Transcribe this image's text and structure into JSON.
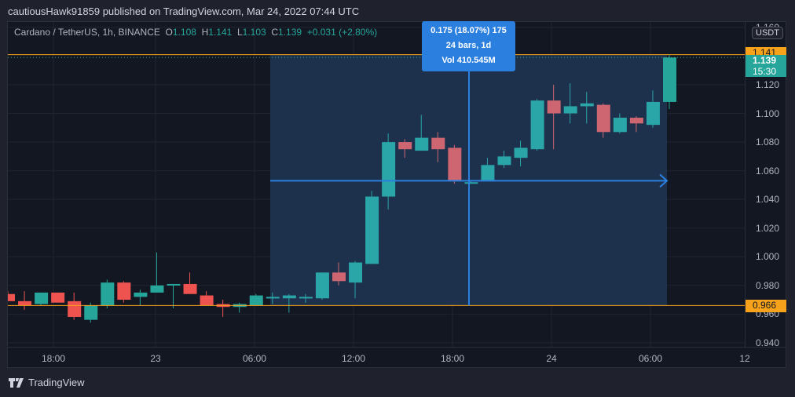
{
  "header": {
    "publish_text": "cautiousHawk91859 published on TradingView.com, Mar 24, 2022 07:44 UTC"
  },
  "legend": {
    "symbol": "Cardano / TetherUS, 1h, BINANCE",
    "o_label": "O",
    "o_value": "1.108",
    "h_label": "H",
    "h_value": "1.141",
    "l_label": "L",
    "l_value": "1.103",
    "c_label": "C",
    "c_value": "1.139",
    "change": "+0.031 (+2.80%)"
  },
  "measure_tooltip": {
    "line1": "0.175 (18.07%) 175",
    "line2": "24 bars, 1d",
    "line3": "Vol 410.545M"
  },
  "price_axis": {
    "unit": "USDT",
    "ticks": [
      "1.160",
      "1.120",
      "1.100",
      "1.080",
      "1.060",
      "1.040",
      "1.020",
      "1.000",
      "0.980",
      "0.960",
      "0.940"
    ],
    "high_badge": "1.141",
    "last_price_badge": "1.139",
    "countdown": "15:30",
    "low_badge": "0.966"
  },
  "time_axis": {
    "labels": [
      "18:00",
      "23",
      "06:00",
      "12:00",
      "18:00",
      "24",
      "06:00",
      "12"
    ]
  },
  "footer": {
    "brand": "TradingView"
  },
  "colors": {
    "up": "#26a69a",
    "down": "#ef5350",
    "up_in_range": "#2aa5a8",
    "down_in_range": "#cd6670",
    "horizontal_line": "#f7a21b",
    "measure": "#2a7fdf",
    "measure_fill": "#1e3350",
    "background": "#131722"
  },
  "chart_data": {
    "type": "candlestick",
    "title": "Cardano / TetherUS, 1h, BINANCE",
    "xlabel": "",
    "ylabel": "USDT",
    "ylim": [
      0.935,
      1.162
    ],
    "grid": true,
    "x_tick_labels": [
      "18:00",
      "23",
      "06:00",
      "12:00",
      "18:00",
      "24",
      "06:00",
      "12"
    ],
    "horizontal_lines": [
      1.141,
      0.966
    ],
    "measure_range": {
      "from_bar": 16,
      "to_bar": 40,
      "price_from": 0.966,
      "price_to": 1.141,
      "change": 0.175,
      "change_pct": 18.07,
      "bars": 24,
      "duration": "1d",
      "volume": "410.545M"
    },
    "candles": [
      {
        "o": 0.974,
        "h": 0.976,
        "l": 0.969,
        "c": 0.969
      },
      {
        "o": 0.969,
        "h": 0.976,
        "l": 0.963,
        "c": 0.966
      },
      {
        "o": 0.967,
        "h": 0.975,
        "l": 0.966,
        "c": 0.975
      },
      {
        "o": 0.975,
        "h": 0.975,
        "l": 0.968,
        "c": 0.968
      },
      {
        "o": 0.969,
        "h": 0.975,
        "l": 0.956,
        "c": 0.958
      },
      {
        "o": 0.956,
        "h": 0.968,
        "l": 0.954,
        "c": 0.966
      },
      {
        "o": 0.966,
        "h": 0.984,
        "l": 0.964,
        "c": 0.982
      },
      {
        "o": 0.982,
        "h": 0.983,
        "l": 0.968,
        "c": 0.97
      },
      {
        "o": 0.972,
        "h": 0.977,
        "l": 0.966,
        "c": 0.975
      },
      {
        "o": 0.975,
        "h": 1.003,
        "l": 0.975,
        "c": 0.98
      },
      {
        "o": 0.98,
        "h": 0.981,
        "l": 0.964,
        "c": 0.981
      },
      {
        "o": 0.981,
        "h": 0.989,
        "l": 0.976,
        "c": 0.974
      },
      {
        "o": 0.973,
        "h": 0.976,
        "l": 0.966,
        "c": 0.966
      },
      {
        "o": 0.967,
        "h": 0.97,
        "l": 0.958,
        "c": 0.965
      },
      {
        "o": 0.965,
        "h": 0.968,
        "l": 0.961,
        "c": 0.967
      },
      {
        "o": 0.966,
        "h": 0.974,
        "l": 0.966,
        "c": 0.973
      },
      {
        "o": 0.972,
        "h": 0.975,
        "l": 0.967,
        "c": 0.972
      },
      {
        "o": 0.971,
        "h": 0.974,
        "l": 0.961,
        "c": 0.973
      },
      {
        "o": 0.972,
        "h": 0.974,
        "l": 0.968,
        "c": 0.972
      },
      {
        "o": 0.971,
        "h": 0.989,
        "l": 0.97,
        "c": 0.989
      },
      {
        "o": 0.989,
        "h": 0.996,
        "l": 0.98,
        "c": 0.983
      },
      {
        "o": 0.982,
        "h": 0.997,
        "l": 0.971,
        "c": 0.996
      },
      {
        "o": 0.995,
        "h": 1.046,
        "l": 0.995,
        "c": 1.042
      },
      {
        "o": 1.042,
        "h": 1.086,
        "l": 1.033,
        "c": 1.08
      },
      {
        "o": 1.08,
        "h": 1.082,
        "l": 1.069,
        "c": 1.075
      },
      {
        "o": 1.074,
        "h": 1.099,
        "l": 1.074,
        "c": 1.083
      },
      {
        "o": 1.083,
        "h": 1.087,
        "l": 1.066,
        "c": 1.075
      },
      {
        "o": 1.076,
        "h": 1.078,
        "l": 1.051,
        "c": 1.053
      },
      {
        "o": 1.051,
        "h": 1.053,
        "l": 1.051,
        "c": 1.052
      },
      {
        "o": 1.053,
        "h": 1.069,
        "l": 1.053,
        "c": 1.064
      },
      {
        "o": 1.064,
        "h": 1.074,
        "l": 1.062,
        "c": 1.07
      },
      {
        "o": 1.069,
        "h": 1.081,
        "l": 1.063,
        "c": 1.076
      },
      {
        "o": 1.075,
        "h": 1.11,
        "l": 1.074,
        "c": 1.109
      },
      {
        "o": 1.109,
        "h": 1.12,
        "l": 1.075,
        "c": 1.1
      },
      {
        "o": 1.1,
        "h": 1.121,
        "l": 1.093,
        "c": 1.105
      },
      {
        "o": 1.105,
        "h": 1.115,
        "l": 1.093,
        "c": 1.107
      },
      {
        "o": 1.106,
        "h": 1.107,
        "l": 1.083,
        "c": 1.087
      },
      {
        "o": 1.087,
        "h": 1.1,
        "l": 1.086,
        "c": 1.097
      },
      {
        "o": 1.097,
        "h": 1.098,
        "l": 1.087,
        "c": 1.093
      },
      {
        "o": 1.092,
        "h": 1.116,
        "l": 1.09,
        "c": 1.108
      },
      {
        "o": 1.108,
        "h": 1.141,
        "l": 1.103,
        "c": 1.139
      }
    ]
  }
}
